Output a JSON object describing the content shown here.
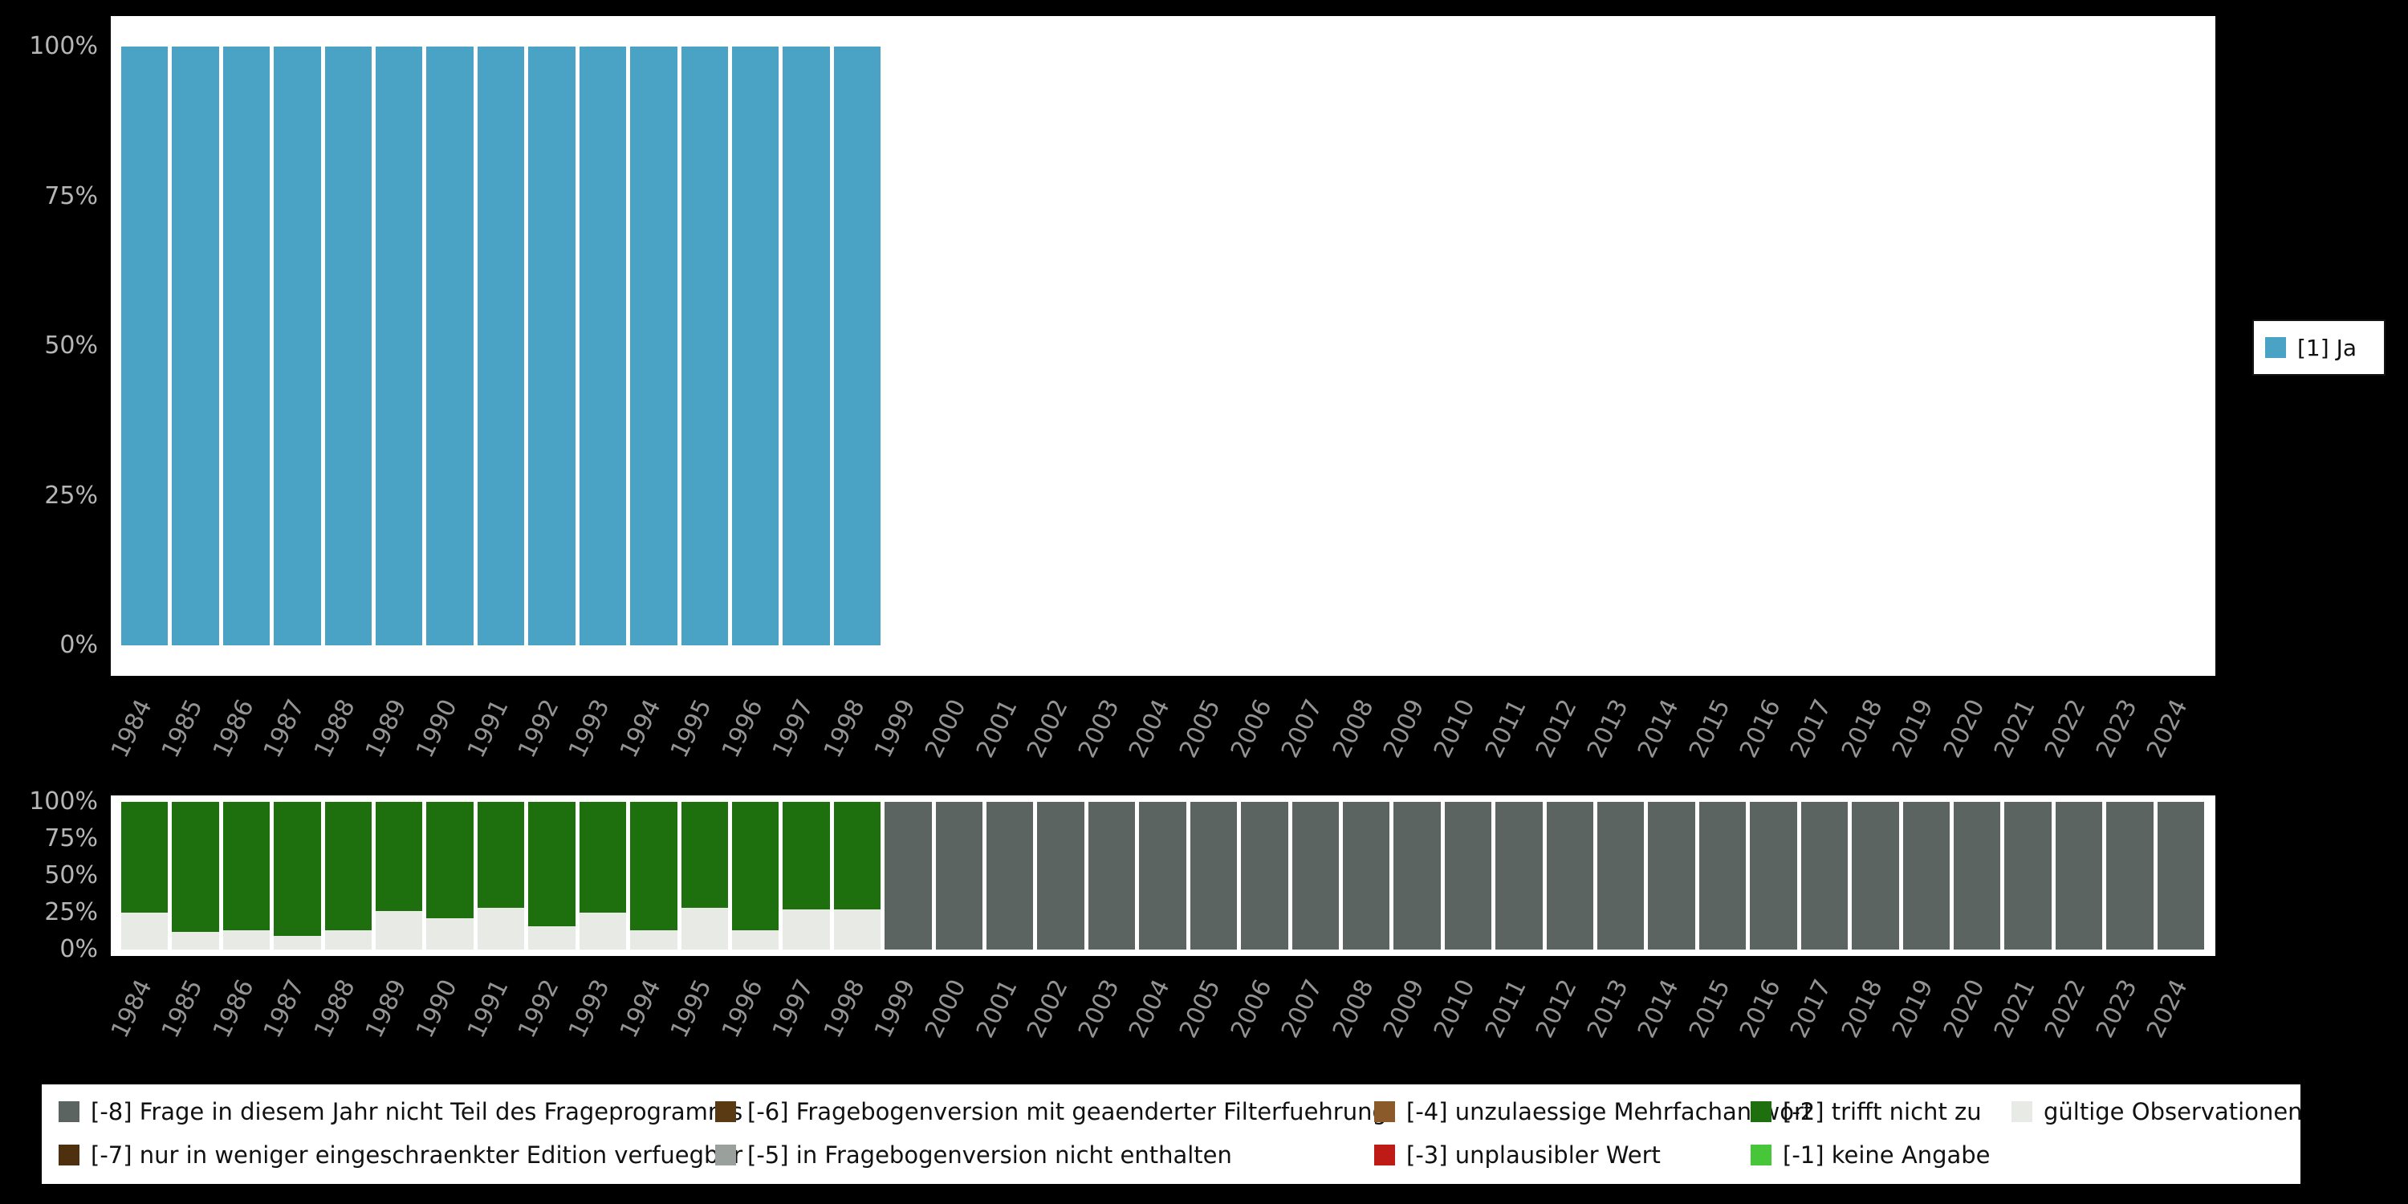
{
  "chart_data": [
    {
      "type": "bar",
      "stacked": true,
      "title": "",
      "xlabel": "",
      "ylabel": "",
      "ylim": [
        0,
        100
      ],
      "yticks": [
        0,
        25,
        50,
        75,
        100
      ],
      "grid": false,
      "legend_position": "right",
      "x": [
        "1984",
        "1985",
        "1986",
        "1987",
        "1988",
        "1989",
        "1990",
        "1991",
        "1992",
        "1993",
        "1994",
        "1995",
        "1996",
        "1997",
        "1998",
        "1999",
        "2000",
        "2001",
        "2002",
        "2003",
        "2004",
        "2005",
        "2006",
        "2007",
        "2008",
        "2009",
        "2010",
        "2011",
        "2012",
        "2013",
        "2014",
        "2015",
        "2016",
        "2017",
        "2018",
        "2019",
        "2020",
        "2021",
        "2022",
        "2023",
        "2024"
      ],
      "series": [
        {
          "name": "[1] Ja",
          "color": "#4aa3c5",
          "values": [
            100,
            100,
            100,
            100,
            100,
            100,
            100,
            100,
            100,
            100,
            100,
            100,
            100,
            100,
            100,
            0,
            0,
            0,
            0,
            0,
            0,
            0,
            0,
            0,
            0,
            0,
            0,
            0,
            0,
            0,
            0,
            0,
            0,
            0,
            0,
            0,
            0,
            0,
            0,
            0,
            0
          ]
        }
      ]
    },
    {
      "type": "bar",
      "stacked": true,
      "title": "",
      "xlabel": "",
      "ylabel": "",
      "ylim": [
        0,
        100
      ],
      "yticks": [
        0,
        25,
        50,
        75,
        100
      ],
      "grid": false,
      "legend_position": "bottom",
      "x": [
        "1984",
        "1985",
        "1986",
        "1987",
        "1988",
        "1989",
        "1990",
        "1991",
        "1992",
        "1993",
        "1994",
        "1995",
        "1996",
        "1997",
        "1998",
        "1999",
        "2000",
        "2001",
        "2002",
        "2003",
        "2004",
        "2005",
        "2006",
        "2007",
        "2008",
        "2009",
        "2010",
        "2011",
        "2012",
        "2013",
        "2014",
        "2015",
        "2016",
        "2017",
        "2018",
        "2019",
        "2020",
        "2021",
        "2022",
        "2023",
        "2024"
      ],
      "series": [
        {
          "name": "gültige Observationen",
          "color": "#e8eae5",
          "values": [
            25,
            12,
            13,
            9,
            13,
            26,
            21,
            28,
            16,
            25,
            13,
            28,
            13,
            27,
            27,
            0,
            0,
            0,
            0,
            0,
            0,
            0,
            0,
            0,
            0,
            0,
            0,
            0,
            0,
            0,
            0,
            0,
            0,
            0,
            0,
            0,
            0,
            0,
            0,
            0,
            0
          ]
        },
        {
          "name": "[-2] trifft nicht zu",
          "color": "#1e6f0e",
          "values": [
            75,
            88,
            87,
            91,
            87,
            74,
            79,
            72,
            84,
            75,
            87,
            72,
            87,
            73,
            73,
            0,
            0,
            0,
            0,
            0,
            0,
            0,
            0,
            0,
            0,
            0,
            0,
            0,
            0,
            0,
            0,
            0,
            0,
            0,
            0,
            0,
            0,
            0,
            0,
            0,
            0
          ]
        },
        {
          "name": "[-8] Frage in diesem Jahr nicht Teil des Frageprogramms",
          "color": "#5c6461",
          "values": [
            0,
            0,
            0,
            0,
            0,
            0,
            0,
            0,
            0,
            0,
            0,
            0,
            0,
            0,
            0,
            100,
            100,
            100,
            100,
            100,
            100,
            100,
            100,
            100,
            100,
            100,
            100,
            100,
            100,
            100,
            100,
            100,
            100,
            100,
            100,
            100,
            100,
            100,
            100,
            100,
            100
          ]
        }
      ]
    }
  ],
  "top_legend": {
    "label": "[1] Ja",
    "color": "#4aa3c5"
  },
  "bottom_legend": {
    "columns": [
      {
        "items": [
          {
            "label": "[-8] Frage in diesem Jahr nicht Teil des Frageprogramms",
            "color": "#5c6461"
          },
          {
            "label": "[-7] nur in weniger eingeschraenkter Edition verfuegbar",
            "color": "#4f300e"
          }
        ]
      },
      {
        "items": [
          {
            "label": "[-6] Fragebogenversion mit geaenderter Filterfuehrung",
            "color": "#5a3a12"
          },
          {
            "label": "[-5] in Fragebogenversion nicht enthalten",
            "color": "#9aa09c"
          }
        ]
      },
      {
        "items": [
          {
            "label": "[-4] unzulaessige Mehrfachantwort",
            "color": "#8a5a2b"
          },
          {
            "label": "[-3] unplausibler Wert",
            "color": "#be1a16"
          }
        ]
      },
      {
        "items": [
          {
            "label": "[-2] trifft nicht zu",
            "color": "#1e6f0e"
          },
          {
            "label": "[-1] keine Angabe",
            "color": "#47c639"
          }
        ]
      },
      {
        "items": [
          {
            "label": "gültige Observationen",
            "color": "#e8eae5"
          }
        ]
      }
    ]
  }
}
